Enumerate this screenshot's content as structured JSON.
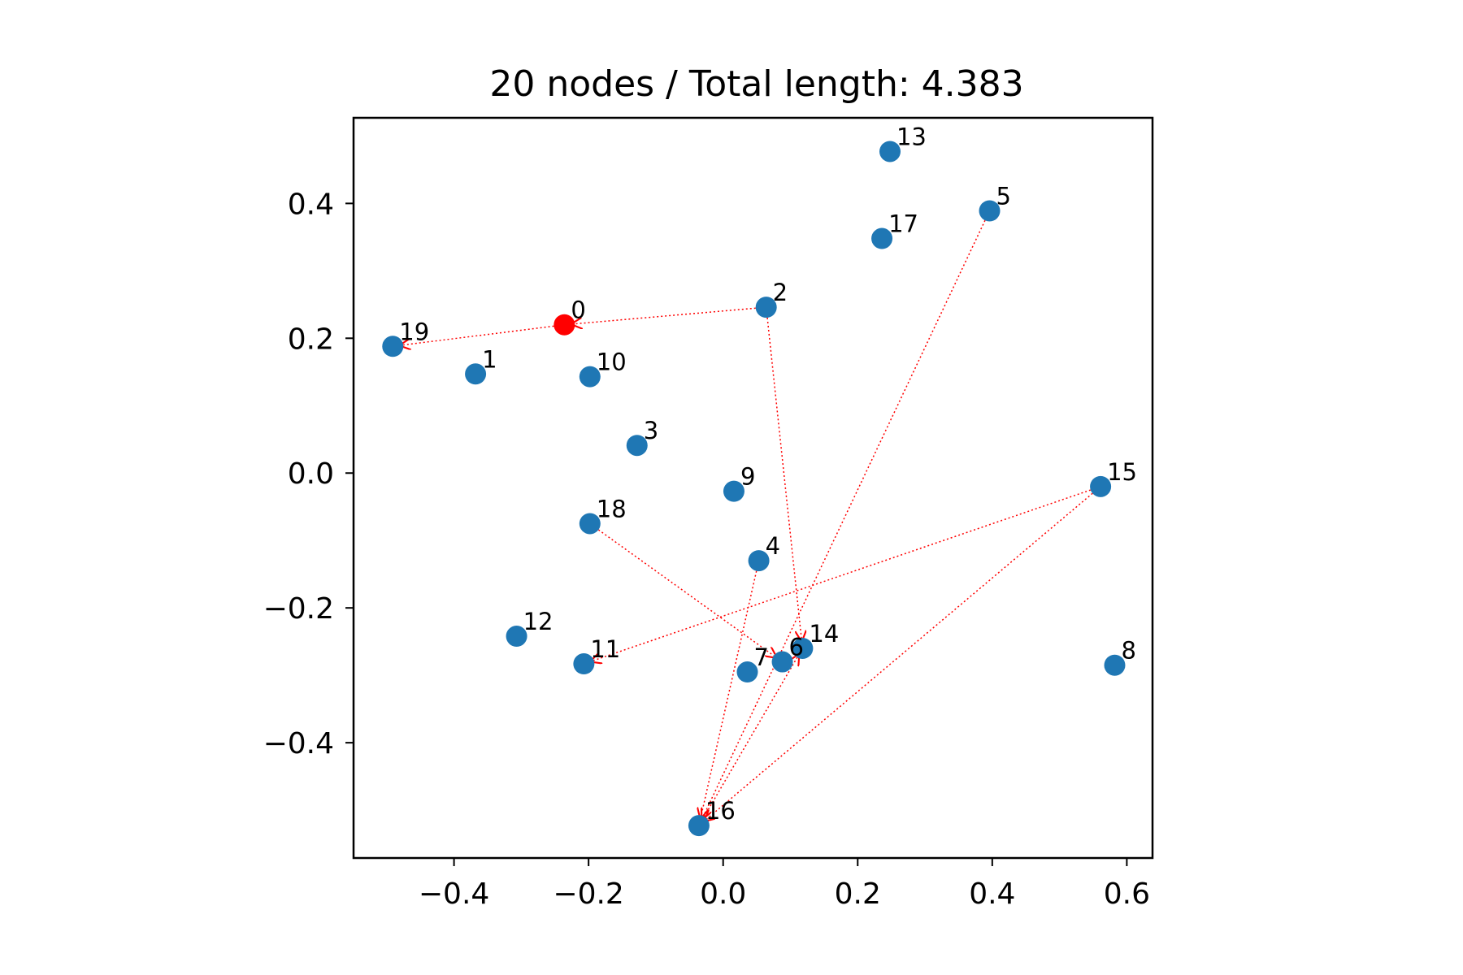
{
  "chart_data": {
    "type": "scatter",
    "title": "20 nodes / Total length: 4.383",
    "xlabel": "",
    "ylabel": "",
    "xlim": [
      -0.5493,
      0.6382
    ],
    "ylim": [
      -0.571,
      0.527
    ],
    "grid": false,
    "xticks": [
      -0.4,
      -0.2,
      0.0,
      0.2,
      0.4,
      0.6
    ],
    "xtick_labels": [
      "−0.4",
      "−0.2",
      "0.0",
      "0.2",
      "0.4",
      "0.6"
    ],
    "yticks": [
      0.4,
      0.2,
      0.0,
      -0.2,
      -0.4
    ],
    "ytick_labels": [
      "0.4",
      "0.2",
      "0.0",
      "−0.2",
      "−0.4"
    ],
    "point_color": "#1f77b4",
    "start_color": "#ff0000",
    "route_color": "#ff0000",
    "start_node": "0",
    "nodes": [
      {
        "label": "0",
        "x": -0.236,
        "y": 0.22
      },
      {
        "label": "1",
        "x": -0.368,
        "y": 0.147
      },
      {
        "label": "2",
        "x": 0.064,
        "y": 0.246
      },
      {
        "label": "3",
        "x": -0.128,
        "y": 0.041
      },
      {
        "label": "4",
        "x": 0.053,
        "y": -0.13
      },
      {
        "label": "5",
        "x": 0.396,
        "y": 0.389
      },
      {
        "label": "6",
        "x": 0.088,
        "y": -0.28
      },
      {
        "label": "7",
        "x": 0.036,
        "y": -0.295
      },
      {
        "label": "8",
        "x": 0.582,
        "y": -0.285
      },
      {
        "label": "9",
        "x": 0.016,
        "y": -0.027
      },
      {
        "label": "10",
        "x": -0.198,
        "y": 0.143
      },
      {
        "label": "11",
        "x": -0.207,
        "y": -0.283
      },
      {
        "label": "12",
        "x": -0.307,
        "y": -0.242
      },
      {
        "label": "13",
        "x": 0.248,
        "y": 0.477
      },
      {
        "label": "14",
        "x": 0.118,
        "y": -0.26
      },
      {
        "label": "15",
        "x": 0.561,
        "y": -0.02
      },
      {
        "label": "16",
        "x": -0.036,
        "y": -0.523
      },
      {
        "label": "17",
        "x": 0.236,
        "y": 0.348
      },
      {
        "label": "18",
        "x": -0.198,
        "y": -0.075
      },
      {
        "label": "19",
        "x": -0.491,
        "y": 0.188
      }
    ],
    "route": [
      [
        "0",
        "19"
      ],
      [
        "2",
        "0"
      ],
      [
        "2",
        "14"
      ],
      [
        "18",
        "6"
      ],
      [
        "4",
        "16"
      ],
      [
        "15",
        "11"
      ],
      [
        "15",
        "16"
      ],
      [
        "5",
        "16"
      ],
      [
        "16",
        "14"
      ]
    ]
  }
}
